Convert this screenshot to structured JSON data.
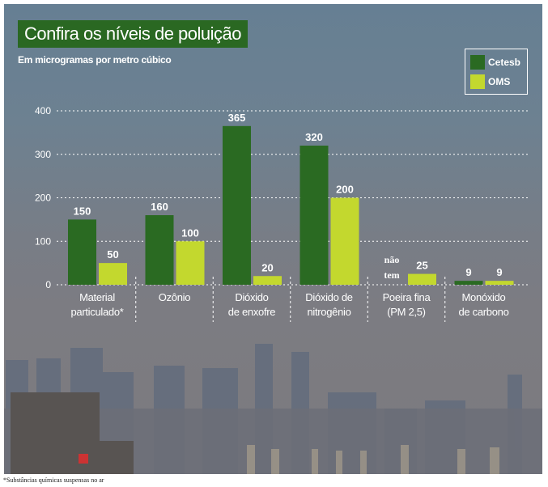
{
  "title": "Confira os níveis de poluição",
  "subtitle": "Em microgramas por metro cúbico",
  "footnote": "*Substâncias químicas suspensas no ar",
  "colors": {
    "cetesb": "#2a6a22",
    "oms": "#c3d82e",
    "title_bg": "#2a6822"
  },
  "chart_data": {
    "type": "bar",
    "title": "Confira os níveis de poluição",
    "ylabel": "Em microgramas por metro cúbico",
    "ylim": [
      0,
      400
    ],
    "yticks": [
      0,
      100,
      200,
      300,
      400
    ],
    "grid": true,
    "legend_position": "top-right",
    "categories": [
      [
        "Material",
        "particulado*"
      ],
      [
        "Ozônio"
      ],
      [
        "Dióxido",
        "de enxofre"
      ],
      [
        "Dióxido de",
        "nitrogênio"
      ],
      [
        "Poeira fina",
        "(PM 2,5)"
      ],
      [
        "Monóxido",
        "de carbono"
      ]
    ],
    "series": [
      {
        "name": "Cetesb",
        "values": [
          150,
          160,
          365,
          320,
          null,
          9
        ]
      },
      {
        "name": "OMS",
        "values": [
          50,
          100,
          20,
          200,
          25,
          9
        ]
      }
    ],
    "missing_label": [
      "não",
      "tem"
    ]
  }
}
